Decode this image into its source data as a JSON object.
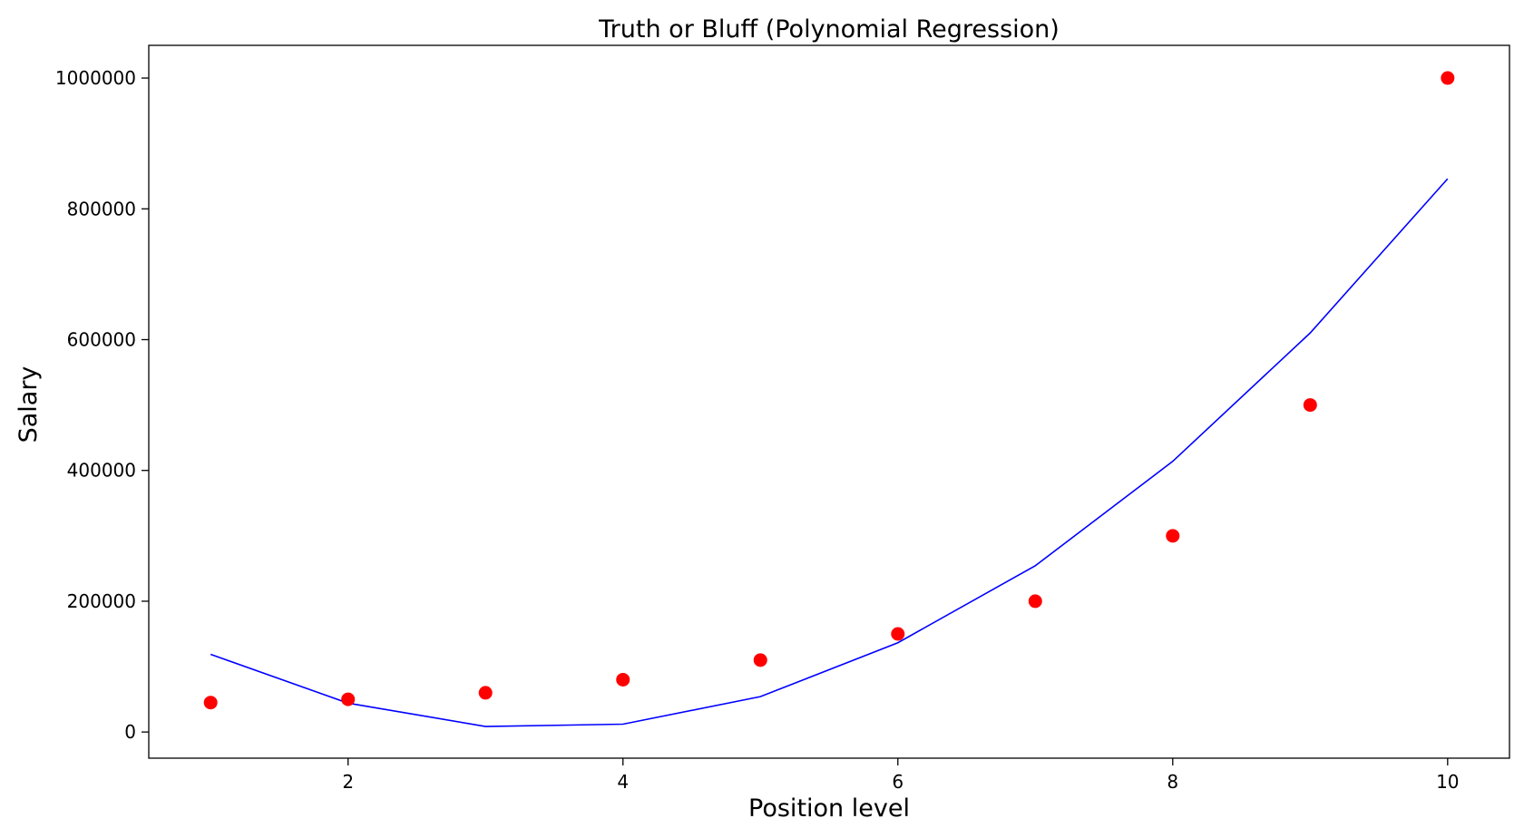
{
  "chart_data": {
    "type": "scatter",
    "title": "Truth or Bluff (Polynomial Regression)",
    "xlabel": "Position level",
    "ylabel": "Salary",
    "xlim": [
      0.55,
      10.45
    ],
    "ylim": [
      -40000,
      1050000
    ],
    "xticks": [
      2,
      4,
      6,
      8,
      10
    ],
    "xtick_labels": [
      "2",
      "4",
      "6",
      "8",
      "10"
    ],
    "yticks": [
      0,
      200000,
      400000,
      600000,
      800000,
      1000000
    ],
    "ytick_labels": [
      "0",
      "200000",
      "400000",
      "600000",
      "800000",
      "1000000"
    ],
    "grid": false,
    "series": [
      {
        "kind": "scatter",
        "color": "#ff0000",
        "x": [
          1,
          2,
          3,
          4,
          5,
          6,
          7,
          8,
          9,
          10
        ],
        "y": [
          45000,
          50000,
          60000,
          80000,
          110000,
          150000,
          200000,
          300000,
          500000,
          1000000
        ]
      },
      {
        "kind": "line",
        "color": "#0000ff",
        "x": [
          1,
          2,
          3,
          4,
          5,
          6,
          7,
          8,
          9,
          10
        ],
        "y": [
          118727,
          44151,
          8439,
          11992,
          54114,
          136510,
          254290,
          413964,
          610200,
          846000
        ]
      }
    ]
  }
}
